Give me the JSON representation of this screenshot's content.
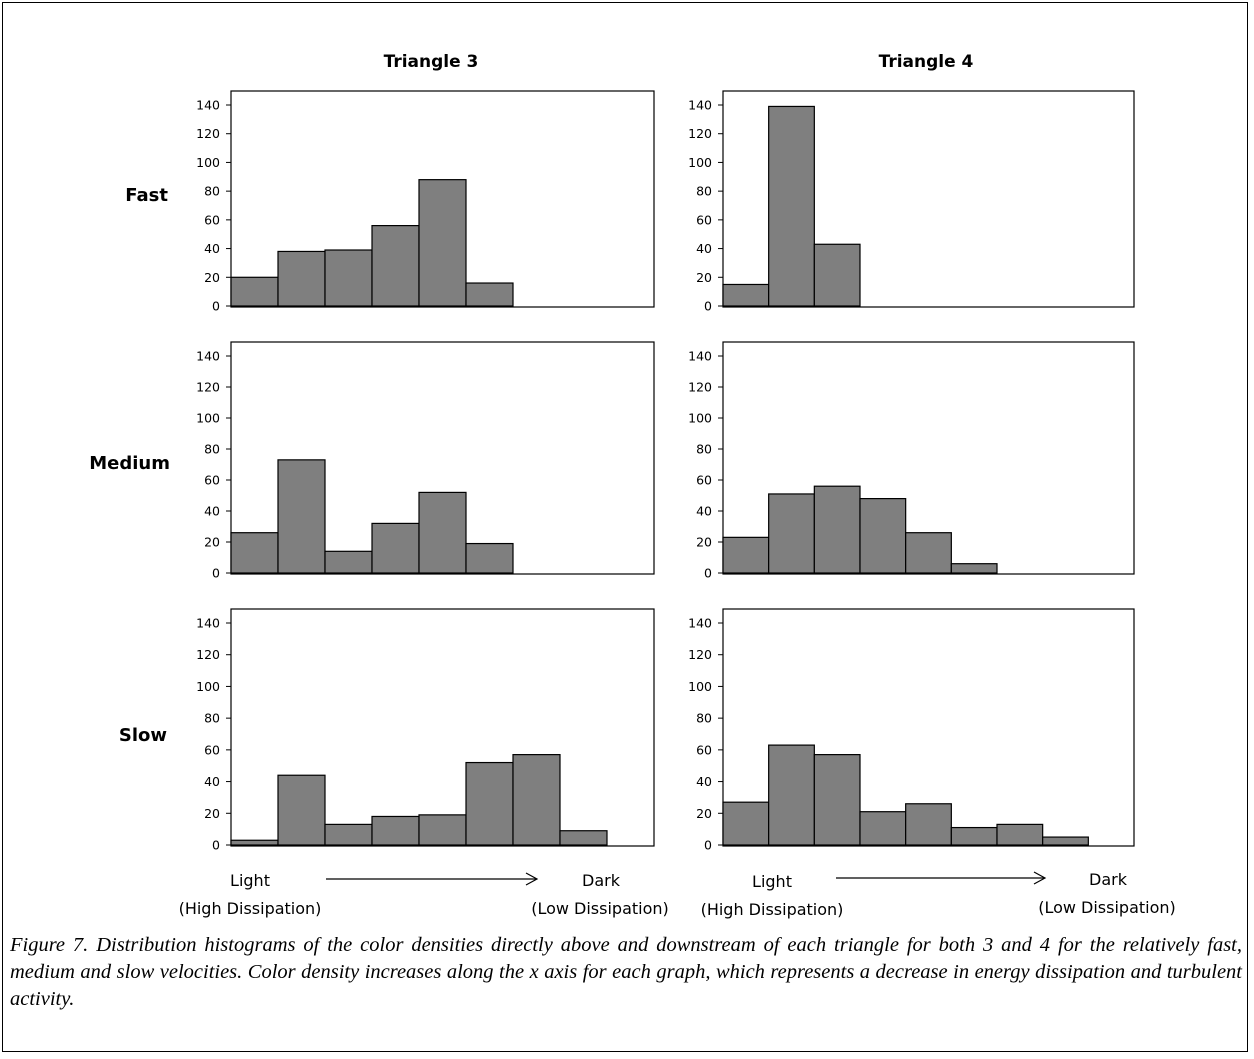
{
  "figure": {
    "columns": [
      "Triangle 3",
      "Triangle 4"
    ],
    "rows": [
      "Fast",
      "Medium",
      "Slow"
    ],
    "x_axis": {
      "left_label": "Light",
      "left_sub": "(High Dissipation)",
      "right_label": "Dark",
      "right_sub": "(Low Dissipation)"
    },
    "caption": "Figure 7. Distribution histograms of the color densities directly above and downstream of each triangle for both 3 and 4 for the relatively fast, medium and slow velocities. Color density increases along the x axis for each graph, which represents a decrease in energy dissipation and turbulent activity."
  },
  "colors": {
    "bar_fill": "#7f7f7f",
    "bar_stroke": "#000000",
    "axis": "#000000"
  },
  "chart_data": [
    {
      "type": "bar",
      "column": "Triangle 3",
      "row": "Fast",
      "ylim": [
        0,
        140
      ],
      "yticks": [
        0,
        20,
        40,
        60,
        80,
        100,
        120,
        140
      ],
      "values": [
        20,
        38,
        39,
        56,
        88,
        16,
        0,
        0
      ]
    },
    {
      "type": "bar",
      "column": "Triangle 4",
      "row": "Fast",
      "ylim": [
        0,
        140
      ],
      "yticks": [
        0,
        20,
        40,
        60,
        80,
        100,
        120,
        140
      ],
      "values": [
        15,
        139,
        43,
        0,
        0,
        0,
        0,
        0
      ]
    },
    {
      "type": "bar",
      "column": "Triangle 3",
      "row": "Medium",
      "ylim": [
        0,
        140
      ],
      "yticks": [
        0,
        20,
        40,
        60,
        80,
        100,
        120,
        140
      ],
      "values": [
        26,
        73,
        14,
        32,
        52,
        19,
        0,
        0
      ]
    },
    {
      "type": "bar",
      "column": "Triangle 4",
      "row": "Medium",
      "ylim": [
        0,
        140
      ],
      "yticks": [
        0,
        20,
        40,
        60,
        80,
        100,
        120,
        140
      ],
      "values": [
        23,
        51,
        56,
        48,
        26,
        6,
        0,
        0
      ]
    },
    {
      "type": "bar",
      "column": "Triangle 3",
      "row": "Slow",
      "ylim": [
        0,
        140
      ],
      "yticks": [
        0,
        20,
        40,
        60,
        80,
        100,
        120,
        140
      ],
      "values": [
        3,
        44,
        13,
        18,
        19,
        52,
        57,
        9
      ]
    },
    {
      "type": "bar",
      "column": "Triangle 4",
      "row": "Slow",
      "ylim": [
        0,
        140
      ],
      "yticks": [
        0,
        20,
        40,
        60,
        80,
        100,
        120,
        140
      ],
      "values": [
        27,
        63,
        57,
        21,
        26,
        11,
        13,
        5
      ]
    }
  ]
}
